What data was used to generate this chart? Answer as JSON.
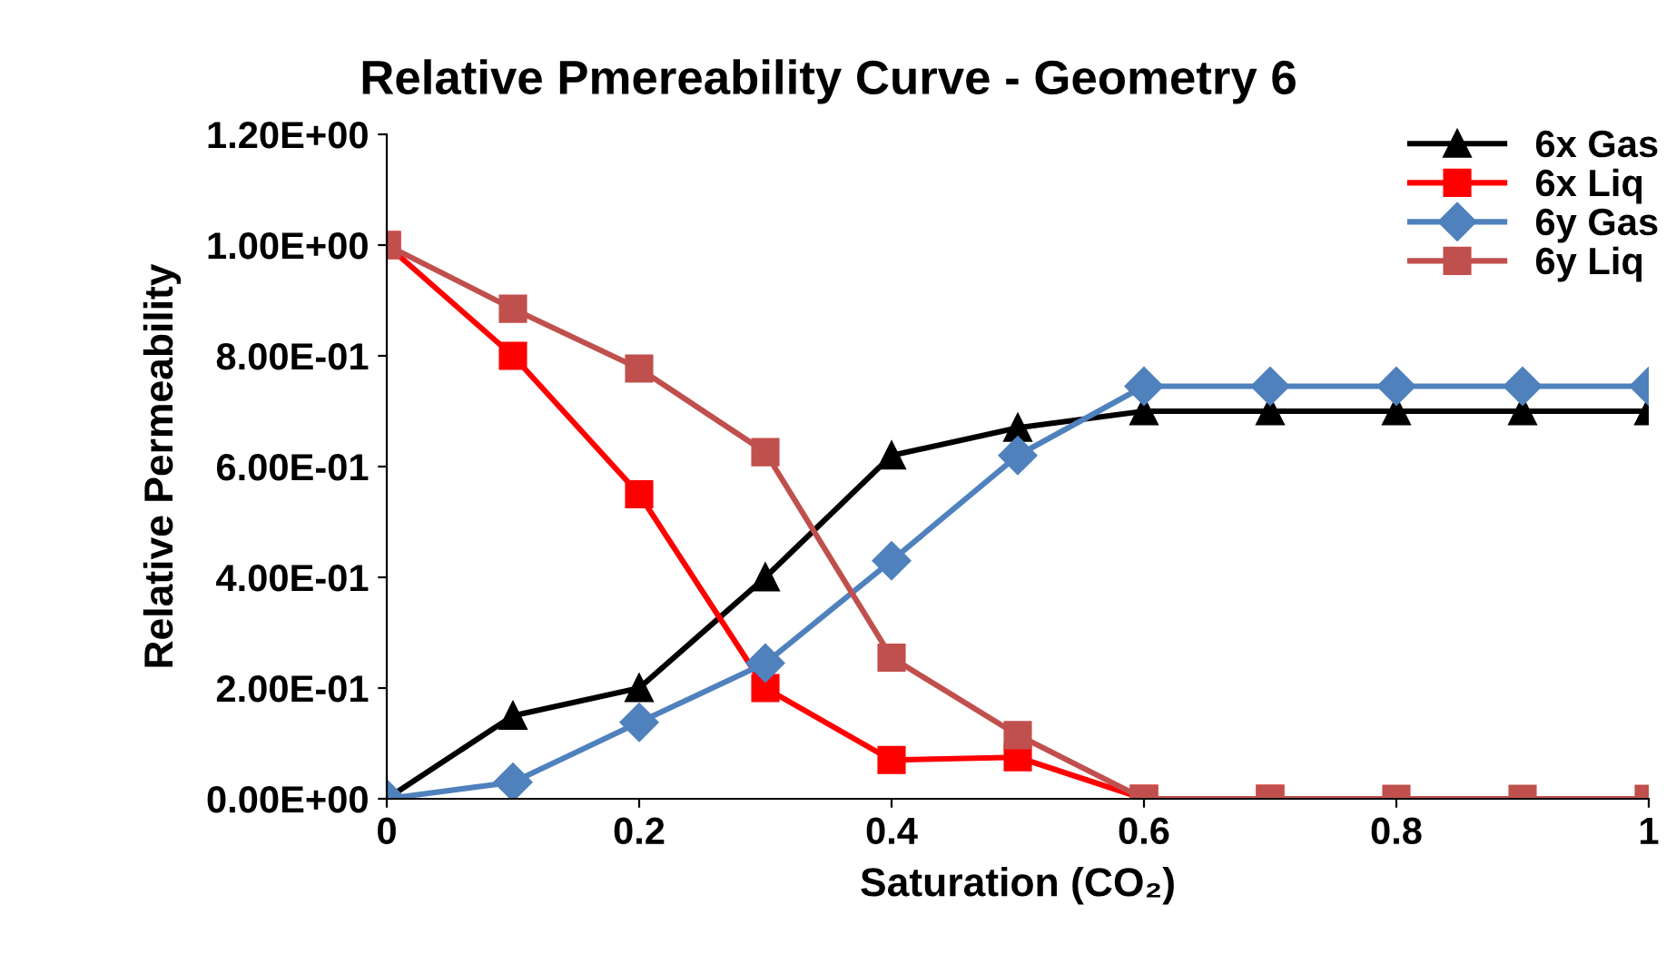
{
  "chart_data": {
    "type": "line",
    "title": "Relative Pmereability Curve - Geometry 6",
    "xlabel": "Saturation (CO₂)",
    "ylabel": "Relative Permeability",
    "x": [
      0,
      0.1,
      0.2,
      0.3,
      0.4,
      0.5,
      0.6,
      0.7,
      0.8,
      0.9,
      1
    ],
    "series": [
      {
        "name": "6x Gas",
        "color": "#000000",
        "marker": "triangle",
        "values": [
          0,
          0.15,
          0.2,
          0.4,
          0.62,
          0.67,
          0.7,
          0.7,
          0.7,
          0.7,
          0.7
        ]
      },
      {
        "name": "6x Liq",
        "color": "#ff0000",
        "marker": "square",
        "values": [
          1.0,
          0.8,
          0.55,
          0.2,
          0.07,
          0.075,
          0,
          0,
          null,
          null,
          null
        ]
      },
      {
        "name": "6y Gas",
        "color": "#4f81bd",
        "marker": "diamond",
        "values": [
          0,
          0.03,
          0.138,
          0.245,
          0.43,
          0.62,
          0.745,
          0.745,
          0.745,
          0.745,
          0.745
        ]
      },
      {
        "name": "6y Liq",
        "color": "#c0504d",
        "marker": "square",
        "values": [
          1.0,
          0.885,
          0.777,
          0.626,
          0.255,
          0.115,
          0,
          0,
          0,
          0,
          0
        ]
      }
    ],
    "xlim": [
      0,
      1
    ],
    "ylim": [
      0,
      1.2
    ],
    "xticks": [
      0,
      0.2,
      0.4,
      0.6,
      0.8,
      1
    ],
    "yticks": [
      {
        "value": 0,
        "label": "0.00E+00"
      },
      {
        "value": 0.2,
        "label": "2.00E-01"
      },
      {
        "value": 0.4,
        "label": "4.00E-01"
      },
      {
        "value": 0.6,
        "label": "6.00E-01"
      },
      {
        "value": 0.8,
        "label": "8.00E-01"
      },
      {
        "value": 1.0,
        "label": "1.00E+00"
      },
      {
        "value": 1.2,
        "label": "1.20E+00"
      }
    ],
    "grid": false,
    "legend": "top right"
  }
}
